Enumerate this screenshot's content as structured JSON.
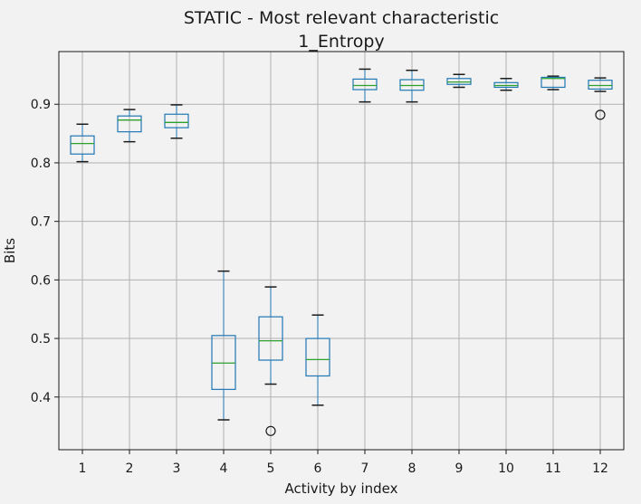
{
  "chart_data": {
    "type": "box",
    "title": "STATIC - Most relevant characteristic",
    "subtitle": "1_Entropy",
    "xlabel": "Activity by index",
    "ylabel": "Bits",
    "categories": [
      "1",
      "2",
      "3",
      "4",
      "5",
      "6",
      "7",
      "8",
      "9",
      "10",
      "11",
      "12"
    ],
    "ylim": [
      0.31,
      0.99
    ],
    "yticks": [
      "0.4",
      "0.5",
      "0.6",
      "0.7",
      "0.8",
      "0.9"
    ],
    "grid": true,
    "boxes": [
      {
        "category": "1",
        "whisker_low": 0.802,
        "q1": 0.815,
        "median": 0.833,
        "q3": 0.846,
        "whisker_high": 0.866,
        "outliers": []
      },
      {
        "category": "2",
        "whisker_low": 0.836,
        "q1": 0.853,
        "median": 0.873,
        "q3": 0.88,
        "whisker_high": 0.891,
        "outliers": []
      },
      {
        "category": "3",
        "whisker_low": 0.842,
        "q1": 0.86,
        "median": 0.869,
        "q3": 0.883,
        "whisker_high": 0.899,
        "outliers": []
      },
      {
        "category": "4",
        "whisker_low": 0.361,
        "q1": 0.413,
        "median": 0.458,
        "q3": 0.505,
        "whisker_high": 0.615,
        "outliers": []
      },
      {
        "category": "5",
        "whisker_low": 0.422,
        "q1": 0.463,
        "median": 0.496,
        "q3": 0.537,
        "whisker_high": 0.588,
        "outliers": [
          0.342
        ]
      },
      {
        "category": "6",
        "whisker_low": 0.386,
        "q1": 0.436,
        "median": 0.464,
        "q3": 0.5,
        "whisker_high": 0.54,
        "outliers": []
      },
      {
        "category": "7",
        "whisker_low": 0.904,
        "q1": 0.925,
        "median": 0.932,
        "q3": 0.943,
        "whisker_high": 0.96,
        "outliers": []
      },
      {
        "category": "8",
        "whisker_low": 0.904,
        "q1": 0.924,
        "median": 0.932,
        "q3": 0.942,
        "whisker_high": 0.958,
        "outliers": []
      },
      {
        "category": "9",
        "whisker_low": 0.929,
        "q1": 0.934,
        "median": 0.938,
        "q3": 0.944,
        "whisker_high": 0.951,
        "outliers": []
      },
      {
        "category": "10",
        "whisker_low": 0.924,
        "q1": 0.929,
        "median": 0.932,
        "q3": 0.937,
        "whisker_high": 0.944,
        "outliers": []
      },
      {
        "category": "11",
        "whisker_low": 0.925,
        "q1": 0.929,
        "median": 0.944,
        "q3": 0.946,
        "whisker_high": 0.948,
        "outliers": []
      },
      {
        "category": "12",
        "whisker_low": 0.922,
        "q1": 0.926,
        "median": 0.932,
        "q3": 0.941,
        "whisker_high": 0.945,
        "outliers": [
          0.882
        ]
      }
    ],
    "colors": {
      "box": "#1f77b4",
      "median": "#2ca02c",
      "whisker": "#1a1a1a",
      "grid": "#b0b0b0"
    }
  }
}
